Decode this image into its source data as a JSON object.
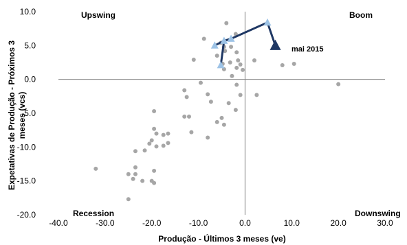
{
  "chart_data": {
    "type": "scatter",
    "title": "",
    "xlabel": "Produção - Últimos 3 meses (ve)",
    "ylabel": "Expetativas de Produção - Próximos 3 meses (vcs)",
    "xlim": [
      -40,
      30
    ],
    "ylim": [
      -20,
      10
    ],
    "xticks": [
      -40,
      -30,
      -20,
      -10,
      0,
      10,
      20,
      30
    ],
    "yticks": [
      -20,
      -15,
      -10,
      -5,
      0,
      5,
      10
    ],
    "xtick_labels": [
      "-40.0",
      "-30.0",
      "-20.0",
      "-10.0",
      "0.0",
      "10.0",
      "20.0",
      "30.0"
    ],
    "ytick_labels": [
      "-20.0",
      "-15.0",
      "-10.0",
      "-5.0",
      "0.0",
      "5.0",
      "10.0"
    ],
    "grid": false,
    "quadrant_labels": {
      "upper_left": "Upswing",
      "upper_right": "Boom",
      "lower_left": "Recession",
      "lower_right": "Downswing"
    },
    "annotation": "mai 2015",
    "colors": {
      "history": "#a6a6a6",
      "path_line": "#1f3864",
      "path_marker": "#9dc3e6",
      "latest_marker": "#1f3864",
      "axis": "#808080"
    },
    "history_points": [
      [
        -4,
        8.3
      ],
      [
        -8.8,
        6
      ],
      [
        -2,
        6.7
      ],
      [
        -5.2,
        5.4
      ],
      [
        -4.5,
        4.8
      ],
      [
        -3,
        4.8
      ],
      [
        -6,
        3.5
      ],
      [
        -1.8,
        4
      ],
      [
        -4.3,
        4.2
      ],
      [
        -1.5,
        2.8
      ],
      [
        -3.2,
        2.5
      ],
      [
        -4.8,
        2.3
      ],
      [
        -1,
        2.2
      ],
      [
        -11,
        2.9
      ],
      [
        -1.8,
        1.7
      ],
      [
        -0.5,
        1.4
      ],
      [
        2,
        2.8
      ],
      [
        8,
        2.1
      ],
      [
        10.5,
        2.3
      ],
      [
        -4.5,
        1.5
      ],
      [
        -2.8,
        0.5
      ],
      [
        -9.5,
        -0.5
      ],
      [
        -1.8,
        -0.8
      ],
      [
        -13,
        -1.6
      ],
      [
        -8,
        -2.2
      ],
      [
        -1,
        -2.3
      ],
      [
        2.5,
        -2.3
      ],
      [
        -12.5,
        -2.6
      ],
      [
        -3.5,
        -3.5
      ],
      [
        -7.3,
        -3.3
      ],
      [
        -2,
        -4.5
      ],
      [
        20,
        -0.7
      ],
      [
        -19.5,
        -4.7
      ],
      [
        -13,
        -5.5
      ],
      [
        -12,
        -5.5
      ],
      [
        -5,
        -5.7
      ],
      [
        -6,
        -6.3
      ],
      [
        -4.5,
        -6.7
      ],
      [
        -19.5,
        -7.3
      ],
      [
        -19,
        -8
      ],
      [
        -17.5,
        -8.2
      ],
      [
        -16.5,
        -8
      ],
      [
        -20,
        -9
      ],
      [
        -20.5,
        -9.5
      ],
      [
        -19,
        -9.9
      ],
      [
        -17.5,
        -9.8
      ],
      [
        -16.5,
        -9.4
      ],
      [
        -11.5,
        -7.8
      ],
      [
        -8,
        -8.6
      ],
      [
        -21.5,
        -10.5
      ],
      [
        -23.5,
        -10.6
      ],
      [
        -23.5,
        -13
      ],
      [
        -19.5,
        -13.5
      ],
      [
        -23.5,
        -14
      ],
      [
        -25,
        -14
      ],
      [
        -22,
        -15
      ],
      [
        -20,
        -15
      ],
      [
        -19.5,
        -15.3
      ],
      [
        -32,
        -13.2
      ],
      [
        -24,
        -14.7
      ],
      [
        -25,
        -17.7
      ]
    ],
    "recent_path": [
      [
        -6.5,
        5
      ],
      [
        -4.5,
        5.7
      ],
      [
        -3,
        6
      ],
      [
        4.8,
        8.4
      ],
      [
        6.5,
        5
      ]
    ],
    "path_tail": [
      [
        -4.5,
        5.7
      ],
      [
        -5.2,
        2.1
      ]
    ],
    "latest_point": [
      6.5,
      5
    ]
  }
}
